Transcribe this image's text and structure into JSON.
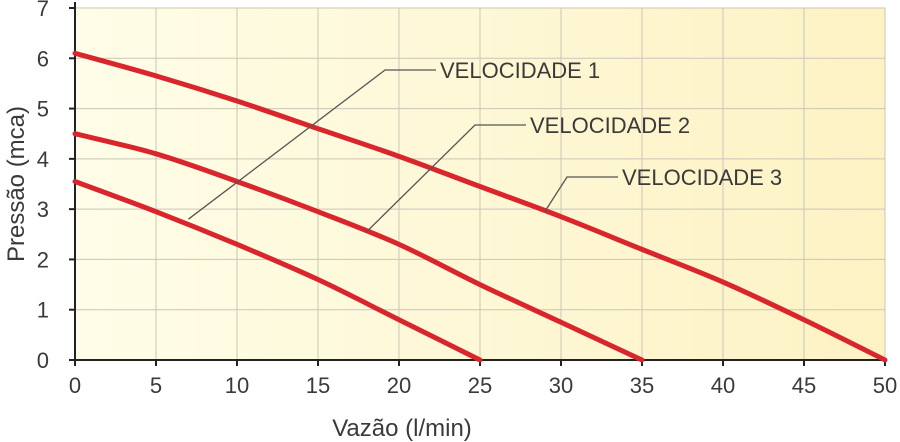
{
  "chart_data": {
    "type": "line",
    "xlabel": "Vazão (l/min)",
    "ylabel": "Pressão (mca)",
    "xlim": [
      0,
      50
    ],
    "ylim": [
      0,
      7
    ],
    "x_ticks": [
      "0",
      "5",
      "10",
      "15",
      "20",
      "25",
      "30",
      "35",
      "40",
      "45",
      "50"
    ],
    "y_ticks": [
      "0",
      "1",
      "2",
      "3",
      "4",
      "5",
      "6",
      "7"
    ],
    "grid": true,
    "line_color": "#d9262c",
    "background_gradient": [
      "#fffde8",
      "#fdf2c4"
    ],
    "series": [
      {
        "name": "VELOCIDADE 1",
        "x": [
          0,
          5,
          10,
          15,
          20,
          25,
          30,
          35,
          40,
          45,
          50
        ],
        "y": [
          3.55,
          2.95,
          2.3,
          1.6,
          0.8,
          0.0,
          null,
          null,
          null,
          null,
          null
        ]
      },
      {
        "name": "VELOCIDADE 2",
        "x": [
          0,
          5,
          10,
          15,
          20,
          25,
          30,
          35,
          40,
          45,
          50
        ],
        "y": [
          4.5,
          4.1,
          3.55,
          2.95,
          2.3,
          1.5,
          0.75,
          0.0,
          null,
          null,
          null
        ]
      },
      {
        "name": "VELOCIDADE 3",
        "x": [
          0,
          5,
          10,
          15,
          20,
          25,
          30,
          35,
          40,
          45,
          50
        ],
        "y": [
          6.1,
          5.65,
          5.15,
          4.6,
          4.05,
          3.45,
          2.85,
          2.2,
          1.55,
          0.8,
          0.0
        ]
      }
    ],
    "callouts": [
      {
        "text": "VELOCIDADE 1",
        "series": 0,
        "x": 7,
        "y": 2.8
      },
      {
        "text": "VELOCIDADE 2",
        "series": 1,
        "x": 18,
        "y": 2.55
      },
      {
        "text": "VELOCIDADE 3",
        "series": 2,
        "x": 29,
        "y": 2.95
      }
    ]
  }
}
